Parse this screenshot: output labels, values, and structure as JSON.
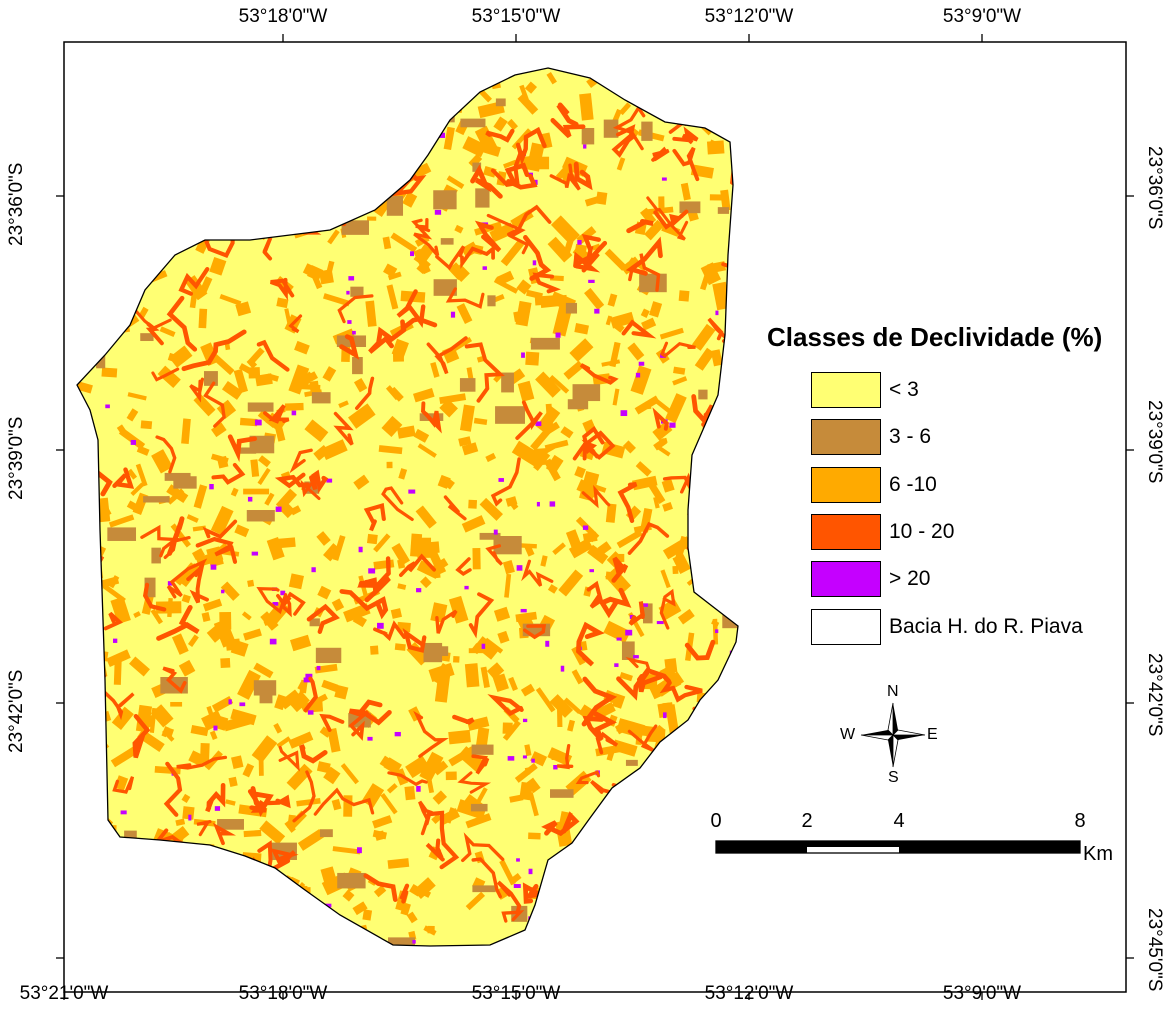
{
  "map": {
    "top_labels": [
      "53°18'0\"W",
      "53°15'0\"W",
      "53°12'0\"W",
      "53°9'0\"W"
    ],
    "bottom_labels": [
      "53°21'0\"W",
      "53°18'0\"W",
      "53°15'0\"W",
      "53°12'0\"W",
      "53°9'0\"W"
    ],
    "left_labels": [
      "23°36'0\"S",
      "23°39'0\"S",
      "23°42'0\"S"
    ],
    "right_labels": [
      "23°36'0\"S",
      "23°39'0\"S",
      "23°42'0\"S",
      "23°45'0\"S"
    ]
  },
  "legend": {
    "title": "Classes de Declividade (%)",
    "items": [
      {
        "label": "< 3",
        "color": "#FFFF73"
      },
      {
        "label": "3 - 6",
        "color": "#C68B3A"
      },
      {
        "label": "6 -10",
        "color": "#FFAA00"
      },
      {
        "label": "10 - 20",
        "color": "#FF5500"
      },
      {
        "label": "> 20",
        "color": "#C500FF"
      },
      {
        "label": "Bacia H. do R. Piava",
        "color": "#FFFFFF"
      }
    ]
  },
  "compass": {
    "n": "N",
    "s": "S",
    "e": "E",
    "w": "W"
  },
  "scalebar": {
    "ticks": [
      "0",
      "2",
      "4",
      "8"
    ],
    "unit": "Km"
  }
}
